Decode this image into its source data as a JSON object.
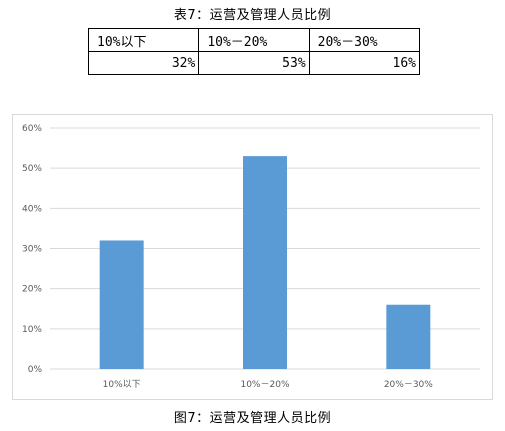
{
  "table": {
    "title": "表7：运营及管理人员比例",
    "headers": [
      "10%以下",
      "10%－20%",
      "20%－30%"
    ],
    "values": [
      "32%",
      "53%",
      "16%"
    ]
  },
  "figure": {
    "caption": "图7：运营及管理人员比例"
  },
  "chart_data": {
    "type": "bar",
    "categories": [
      "10%以下",
      "10%－20%",
      "20%－30%"
    ],
    "values": [
      32,
      53,
      16
    ],
    "unit": "%",
    "ylim": [
      0,
      60
    ],
    "yticks": [
      "0%",
      "10%",
      "20%",
      "30%",
      "40%",
      "50%",
      "60%"
    ],
    "grid": true,
    "legend": "none",
    "bar_color": "#5b9bd5",
    "grid_color": "#d9d9d9"
  }
}
